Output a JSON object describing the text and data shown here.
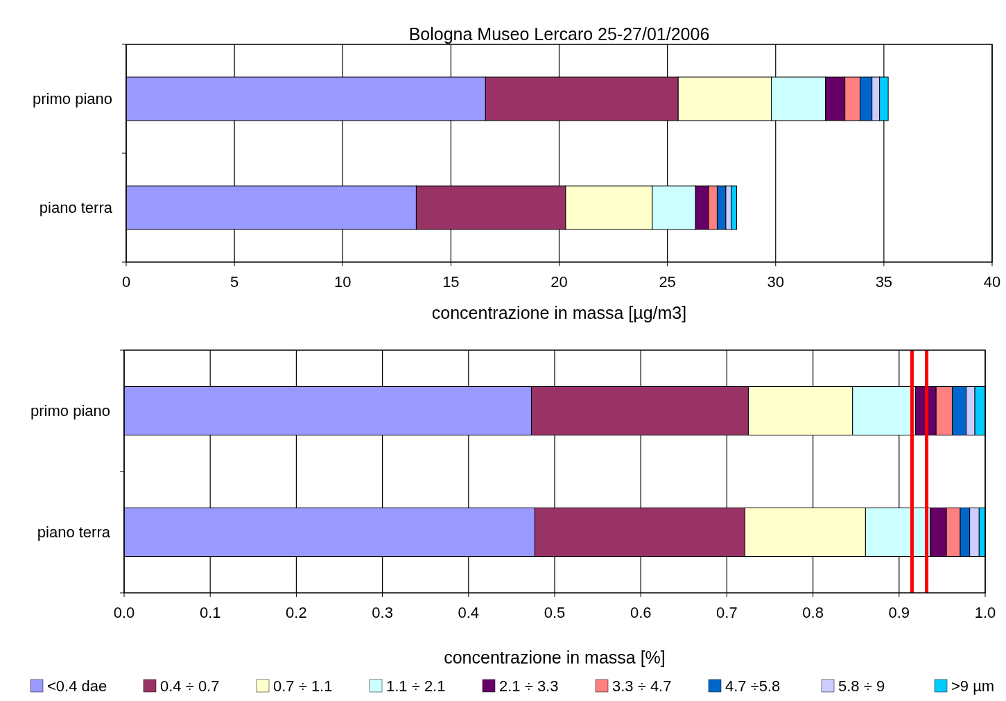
{
  "chart_data": [
    {
      "type": "bar",
      "orientation": "horizontal",
      "stacked": true,
      "title": "Bologna Museo Lercaro 25-27/01/2006",
      "xlabel": "concentrazione in massa [µg/m3]",
      "categories": [
        "primo piano",
        "piano terra"
      ],
      "xlim": [
        0,
        40
      ],
      "xticks": [
        0,
        5,
        10,
        15,
        20,
        25,
        30,
        35,
        40
      ],
      "grid": "x",
      "legend": false,
      "series": [
        {
          "color": "#9999ff",
          "values": [
            16.6,
            13.4
          ]
        },
        {
          "color": "#993366",
          "values": [
            8.9,
            6.9
          ]
        },
        {
          "color": "#ffffcc",
          "values": [
            4.3,
            4.0
          ]
        },
        {
          "color": "#ccffff",
          "values": [
            2.5,
            2.0
          ]
        },
        {
          "color": "#660066",
          "values": [
            0.9,
            0.6
          ]
        },
        {
          "color": "#ff8080",
          "values": [
            0.7,
            0.4
          ]
        },
        {
          "color": "#0066cc",
          "values": [
            0.55,
            0.4
          ]
        },
        {
          "color": "#ccccff",
          "values": [
            0.35,
            0.25
          ]
        },
        {
          "color": "#00ccff",
          "values": [
            0.4,
            0.25
          ]
        }
      ]
    },
    {
      "type": "bar",
      "orientation": "horizontal",
      "stacked": true,
      "xlabel": "concentrazione in massa [%]",
      "categories": [
        "primo piano",
        "piano terra"
      ],
      "xlim": [
        0,
        1
      ],
      "xticks": [
        {
          "value": 0,
          "label": "0.0"
        },
        {
          "value": 0.1,
          "label": "0.1"
        },
        {
          "value": 0.2,
          "label": "0.2"
        },
        {
          "value": 0.3,
          "label": "0.3"
        },
        {
          "value": 0.4,
          "label": "0.4"
        },
        {
          "value": 0.5,
          "label": "0.5"
        },
        {
          "value": 0.6,
          "label": "0.6"
        },
        {
          "value": 0.7,
          "label": "0.7"
        },
        {
          "value": 0.8,
          "label": "0.8"
        },
        {
          "value": 0.9,
          "label": "0.9"
        },
        {
          "value": 1,
          "label": "1.0"
        }
      ],
      "grid": "x",
      "legend": "bottom",
      "ref_lines": [
        {
          "axis": "x",
          "value": 0.915,
          "color": "#ff0000"
        },
        {
          "axis": "x",
          "value": 0.932,
          "color": "#ff0000"
        }
      ],
      "series": [
        {
          "name": "<0.4 dae",
          "color": "#9999ff",
          "values": [
            0.473,
            0.477
          ]
        },
        {
          "name": "0.4 ÷ 0.7",
          "color": "#993366",
          "values": [
            0.252,
            0.244
          ]
        },
        {
          "name": "0.7 ÷ 1.1",
          "color": "#ffffcc",
          "values": [
            0.121,
            0.14
          ]
        },
        {
          "name": "1.1 ÷ 2.1",
          "color": "#ccffff",
          "values": [
            0.073,
            0.075
          ]
        },
        {
          "name": "2.1 ÷ 3.3",
          "color": "#660066",
          "values": [
            0.024,
            0.019
          ]
        },
        {
          "name": "3.3 ÷ 4.7",
          "color": "#ff8080",
          "values": [
            0.019,
            0.016
          ]
        },
        {
          "name": "4.7 ÷5.8",
          "color": "#0066cc",
          "values": [
            0.016,
            0.011
          ]
        },
        {
          "name": "5.8 ÷ 9",
          "color": "#ccccff",
          "values": [
            0.01,
            0.011
          ]
        },
        {
          "name": ">9 µm",
          "color": "#00ccff",
          "values": [
            0.012,
            0.007
          ]
        }
      ]
    }
  ]
}
